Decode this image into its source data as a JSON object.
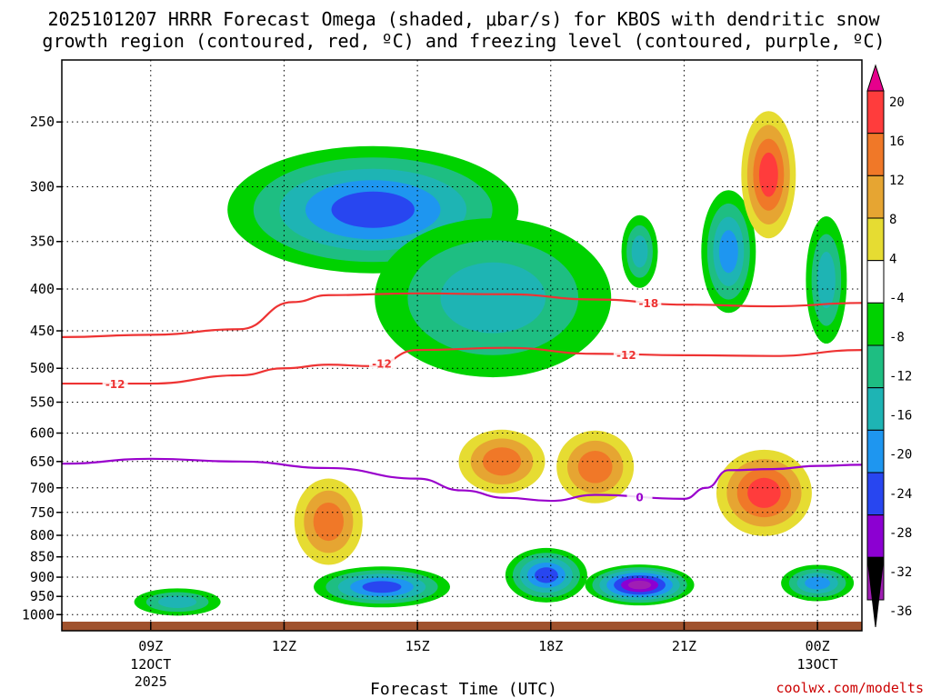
{
  "chart_data": {
    "type": "heatmap",
    "title_line1": "2025101207 HRRR Forecast Omega (shaded, μbar/s) for KBOS with dendritic snow",
    "title_line2": "growth region (contoured, red, ºC) and freezing level (contoured, purple, ºC)",
    "xlabel": "Forecast Time (UTC)",
    "credit": "coolwx.com/modelts",
    "x_range_hours": [
      7,
      25
    ],
    "y_axis": {
      "type": "pressure",
      "reversed": true,
      "range_hPa": [
        210,
        1020
      ]
    },
    "pressure_levels": [
      "250",
      "300",
      "350",
      "400",
      "450",
      "500",
      "550",
      "600",
      "650",
      "700",
      "750",
      "800",
      "850",
      "900",
      "950",
      "1000"
    ],
    "pressure_values": [
      250,
      300,
      350,
      400,
      450,
      500,
      550,
      600,
      650,
      700,
      750,
      800,
      850,
      900,
      950,
      1000
    ],
    "x_ticks": [
      {
        "label": "09Z",
        "sub1": "12OCT",
        "sub2": "2025",
        "hour": 9
      },
      {
        "label": "12Z",
        "sub1": "",
        "sub2": "",
        "hour": 12
      },
      {
        "label": "15Z",
        "sub1": "",
        "sub2": "",
        "hour": 15
      },
      {
        "label": "18Z",
        "sub1": "",
        "sub2": "",
        "hour": 18
      },
      {
        "label": "21Z",
        "sub1": "",
        "sub2": "",
        "hour": 21
      },
      {
        "label": "00Z",
        "sub1": "13OCT",
        "sub2": "",
        "hour": 24
      }
    ],
    "grid": true,
    "colorbar": {
      "labels": [
        "20",
        "16",
        "12",
        "8",
        "4",
        "-4",
        "-8",
        "-12",
        "-16",
        "-20",
        "-24",
        "-28",
        "-32",
        "-36"
      ],
      "colors": [
        "#ff3c3c",
        "#f07828",
        "#e6a532",
        "#e6dc32",
        "#ffffff",
        "#00d200",
        "#1ebe82",
        "#1eb4b4",
        "#1e96f0",
        "#2846f0",
        "#8c00d2",
        "#a01eb4",
        "#aaaaaa",
        "#000000"
      ],
      "top_arrow_color": "#e6008c"
    },
    "omega_features": [
      {
        "name": "upper-lift-14z",
        "kind": "lift",
        "hour": 14.0,
        "hPa": 320,
        "peak": -20
      },
      {
        "name": "upper-lift-17z",
        "kind": "lift",
        "hour": 16.7,
        "hPa": 410,
        "peak": -12
      },
      {
        "name": "upper-lift-20z",
        "kind": "lift",
        "hour": 20.0,
        "hPa": 360,
        "peak": -12
      },
      {
        "name": "upper-lift-22z",
        "kind": "lift",
        "hour": 22.0,
        "hPa": 360,
        "peak": -16
      },
      {
        "name": "upper-lift-24z",
        "kind": "lift",
        "hour": 24.2,
        "hPa": 390,
        "peak": -12
      },
      {
        "name": "low-lift-14z",
        "kind": "lift",
        "hour": 14.2,
        "hPa": 925,
        "peak": -20
      },
      {
        "name": "low-lift-18z",
        "kind": "lift",
        "hour": 17.9,
        "hPa": 895,
        "peak": -20
      },
      {
        "name": "low-lift-20z",
        "kind": "lift",
        "hour": 20.0,
        "hPa": 920,
        "peak": -28
      },
      {
        "name": "low-lift-24z",
        "kind": "lift",
        "hour": 24.0,
        "hPa": 915,
        "peak": -16
      },
      {
        "name": "low-lift-9z",
        "kind": "lift",
        "hour": 9.6,
        "hPa": 965,
        "peak": -12
      },
      {
        "name": "sink-17z",
        "kind": "sink",
        "hour": 16.9,
        "hPa": 650,
        "peak": 12
      },
      {
        "name": "sink-19z",
        "kind": "sink",
        "hour": 19.0,
        "hPa": 660,
        "peak": 12
      },
      {
        "name": "sink-22z",
        "kind": "sink",
        "hour": 22.8,
        "hPa": 710,
        "peak": 16
      },
      {
        "name": "sink-23z-upper",
        "kind": "sink",
        "hour": 22.9,
        "hPa": 290,
        "peak": 16
      },
      {
        "name": "sink-13z",
        "kind": "sink",
        "hour": 13.0,
        "hPa": 770,
        "peak": 12
      }
    ],
    "contours": [
      {
        "name": "dgz-minus18",
        "label": "-18",
        "color": "#ee3333",
        "x": [
          7.0,
          9.0,
          11.0,
          12.2,
          13.0,
          15.0,
          17.0,
          19.0,
          21.0,
          23.0,
          25.0
        ],
        "y": [
          458,
          455,
          448,
          415,
          407,
          405,
          406,
          412,
          418,
          420,
          416
        ]
      },
      {
        "name": "dgz-minus12",
        "label": "-12",
        "color": "#ee3333",
        "x": [
          7.0,
          9.0,
          11.0,
          12.0,
          13.0,
          14.0,
          15.0,
          17.0,
          19.0,
          21.0,
          23.0,
          25.0
        ],
        "y": [
          522,
          522,
          510,
          500,
          495,
          497,
          475,
          472,
          480,
          482,
          483,
          475
        ]
      },
      {
        "name": "freezing-level",
        "label": "0",
        "color": "#9900cc",
        "x": [
          7.0,
          9.0,
          11.0,
          13.0,
          15.0,
          16.0,
          17.0,
          18.0,
          19.0,
          21.0,
          21.5,
          22.0,
          23.0,
          24.0,
          25.0
        ],
        "y": [
          654,
          645,
          650,
          662,
          682,
          705,
          720,
          726,
          714,
          722,
          700,
          666,
          664,
          658,
          656
        ]
      }
    ]
  }
}
